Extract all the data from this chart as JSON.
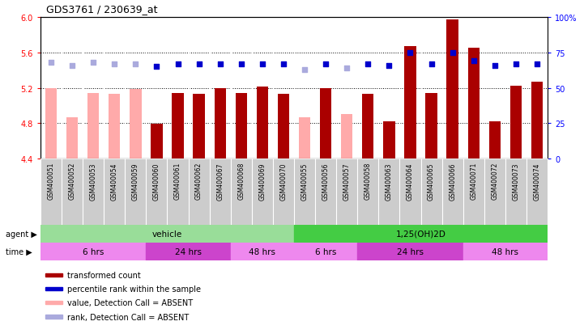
{
  "title": "GDS3761 / 230639_at",
  "samples": [
    "GSM400051",
    "GSM400052",
    "GSM400053",
    "GSM400054",
    "GSM400059",
    "GSM400060",
    "GSM400061",
    "GSM400062",
    "GSM400067",
    "GSM400068",
    "GSM400069",
    "GSM400070",
    "GSM400055",
    "GSM400056",
    "GSM400057",
    "GSM400058",
    "GSM400063",
    "GSM400064",
    "GSM400065",
    "GSM400066",
    "GSM400071",
    "GSM400072",
    "GSM400073",
    "GSM400074"
  ],
  "bar_values": [
    5.2,
    4.87,
    5.14,
    5.13,
    5.19,
    4.79,
    5.14,
    5.13,
    5.2,
    5.14,
    5.21,
    5.13,
    4.87,
    5.2,
    4.9,
    5.13,
    4.82,
    5.67,
    5.14,
    5.97,
    5.65,
    4.82,
    5.22,
    5.27
  ],
  "bar_absent": [
    true,
    true,
    true,
    true,
    true,
    false,
    false,
    false,
    false,
    false,
    false,
    false,
    true,
    false,
    true,
    false,
    false,
    false,
    false,
    false,
    false,
    false,
    false,
    false
  ],
  "rank_values": [
    68,
    66,
    68,
    67,
    67,
    65,
    67,
    67,
    67,
    67,
    67,
    67,
    63,
    67,
    64,
    67,
    66,
    75,
    67,
    75,
    69,
    66,
    67,
    67
  ],
  "rank_absent": [
    true,
    true,
    true,
    true,
    true,
    false,
    false,
    false,
    false,
    false,
    false,
    false,
    true,
    false,
    true,
    false,
    false,
    false,
    false,
    false,
    false,
    false,
    false,
    false
  ],
  "ylim_left": [
    4.4,
    6.0
  ],
  "ylim_right": [
    0,
    100
  ],
  "yticks_left": [
    4.4,
    4.8,
    5.2,
    5.6,
    6.0
  ],
  "yticks_right": [
    0,
    25,
    50,
    75,
    100
  ],
  "bar_color_present": "#aa0000",
  "bar_color_absent": "#ffaaaa",
  "rank_color_present": "#0000cc",
  "rank_color_absent": "#aaaadd",
  "chart_bg": "#dddddd",
  "agent_groups": [
    {
      "label": "vehicle",
      "start": 0,
      "end": 11,
      "color": "#99dd99"
    },
    {
      "label": "1,25(OH)2D",
      "start": 12,
      "end": 23,
      "color": "#44cc44"
    }
  ],
  "time_groups": [
    {
      "label": "6 hrs",
      "start": 0,
      "end": 4,
      "color": "#ee88ee"
    },
    {
      "label": "24 hrs",
      "start": 5,
      "end": 8,
      "color": "#cc44cc"
    },
    {
      "label": "48 hrs",
      "start": 9,
      "end": 11,
      "color": "#ee88ee"
    },
    {
      "label": "6 hrs",
      "start": 12,
      "end": 14,
      "color": "#ee88ee"
    },
    {
      "label": "24 hrs",
      "start": 15,
      "end": 19,
      "color": "#cc44cc"
    },
    {
      "label": "48 hrs",
      "start": 20,
      "end": 23,
      "color": "#ee88ee"
    }
  ],
  "legend_items": [
    {
      "label": "transformed count",
      "color": "#aa0000"
    },
    {
      "label": "percentile rank within the sample",
      "color": "#0000cc"
    },
    {
      "label": "value, Detection Call = ABSENT",
      "color": "#ffaaaa"
    },
    {
      "label": "rank, Detection Call = ABSENT",
      "color": "#aaaadd"
    }
  ],
  "bar_width": 0.55
}
